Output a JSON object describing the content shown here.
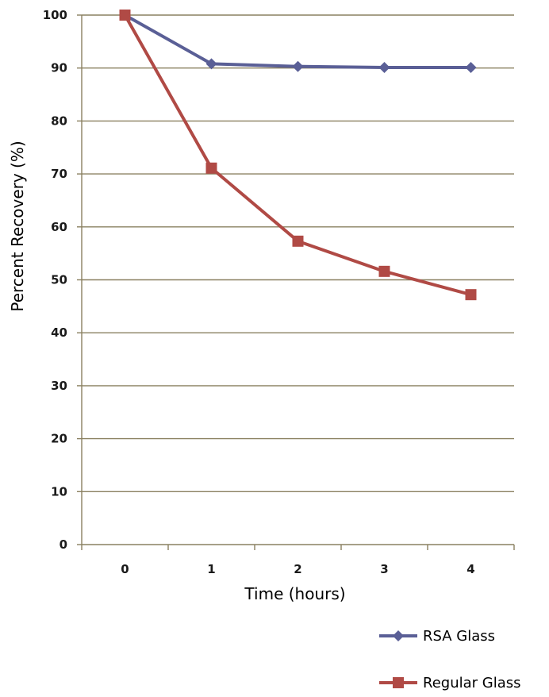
{
  "chart_data": {
    "type": "line",
    "xlabel": "Time (hours)",
    "ylabel": "Percent Recovery (%)",
    "x": [
      0,
      1,
      2,
      3,
      4
    ],
    "x_tick_labels": [
      "0",
      "1",
      "2",
      "3",
      "4"
    ],
    "ylim": [
      0,
      100
    ],
    "y_ticks": [
      0,
      10,
      20,
      30,
      40,
      50,
      60,
      70,
      80,
      90,
      100
    ],
    "grid": "horizontal",
    "legend_placement": "bottom-right",
    "series": [
      {
        "name": "RSA Glass",
        "values": [
          100,
          90.8,
          90.3,
          90.1,
          90.1
        ],
        "color": "#5a5f96",
        "marker": "diamond"
      },
      {
        "name": "Regular Glass",
        "values": [
          100,
          71.1,
          57.3,
          51.6,
          47.2
        ],
        "color": "#b04a45",
        "marker": "square"
      }
    ]
  }
}
